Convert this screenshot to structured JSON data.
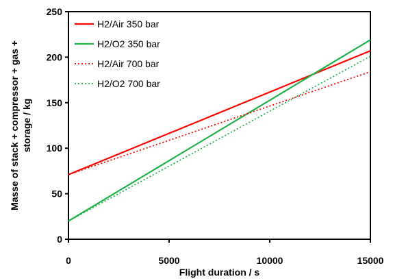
{
  "chart_data": {
    "type": "line",
    "title": "",
    "xlabel": "Flight duration / s",
    "ylabel_lines": [
      "Masse of stack + compressor + gas +",
      "storage / kg"
    ],
    "xlim": [
      0,
      15000
    ],
    "ylim": [
      0,
      250
    ],
    "x_ticks": [
      0,
      5000,
      10000,
      15000
    ],
    "y_ticks": [
      0,
      50,
      100,
      150,
      200,
      250
    ],
    "grid": false,
    "legend_position": "top-left",
    "series": [
      {
        "name": "H2/Air 350 bar",
        "color": "#ff0000",
        "style": "solid",
        "x": [
          0,
          15000
        ],
        "y": [
          71,
          207
        ]
      },
      {
        "name": "H2/O2 350 bar",
        "color": "#1fb24a",
        "style": "solid",
        "x": [
          0,
          15000
        ],
        "y": [
          20,
          219
        ]
      },
      {
        "name": "H2/Air 700 bar",
        "color": "#ff0000",
        "style": "dotted",
        "x": [
          0,
          15000
        ],
        "y": [
          71,
          184
        ]
      },
      {
        "name": "H2/O2 700 bar",
        "color": "#1fb24a",
        "style": "dotted",
        "x": [
          0,
          15000
        ],
        "y": [
          20,
          201
        ]
      }
    ]
  }
}
